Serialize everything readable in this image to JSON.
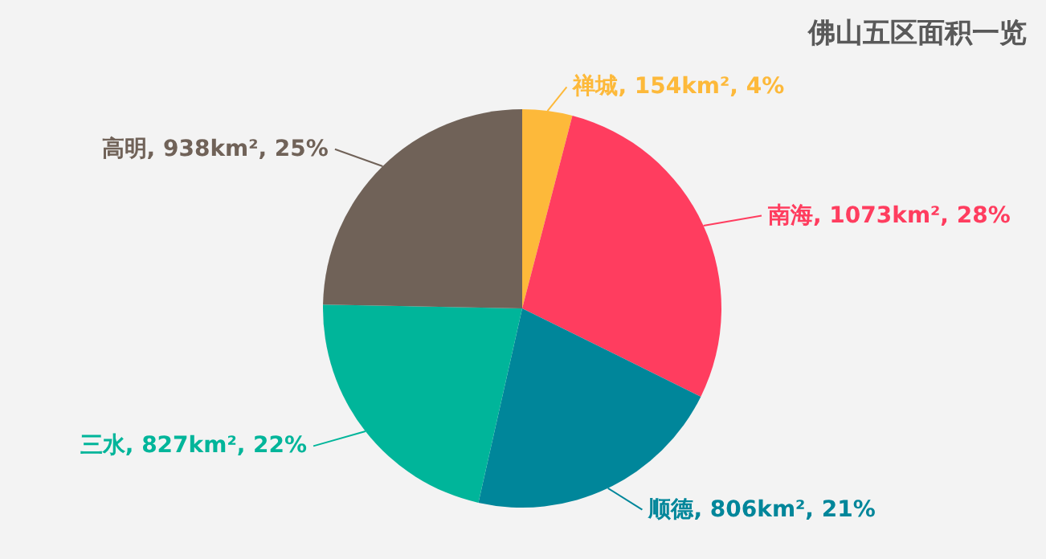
{
  "chart_data": {
    "type": "pie",
    "title": "佛山五区面积一览",
    "categories": [
      "禅城",
      "南海",
      "顺德",
      "三水",
      "高明"
    ],
    "values": [
      154,
      1073,
      806,
      827,
      938
    ],
    "colors": [
      "#fdb93a",
      "#ff3d5f",
      "#00869a",
      "#00b59a",
      "#706258"
    ],
    "value_labels": [
      "154km², 4%",
      "1073km², 28%",
      "806km², 21%",
      "827km², 22%",
      "938km², 25%"
    ]
  }
}
